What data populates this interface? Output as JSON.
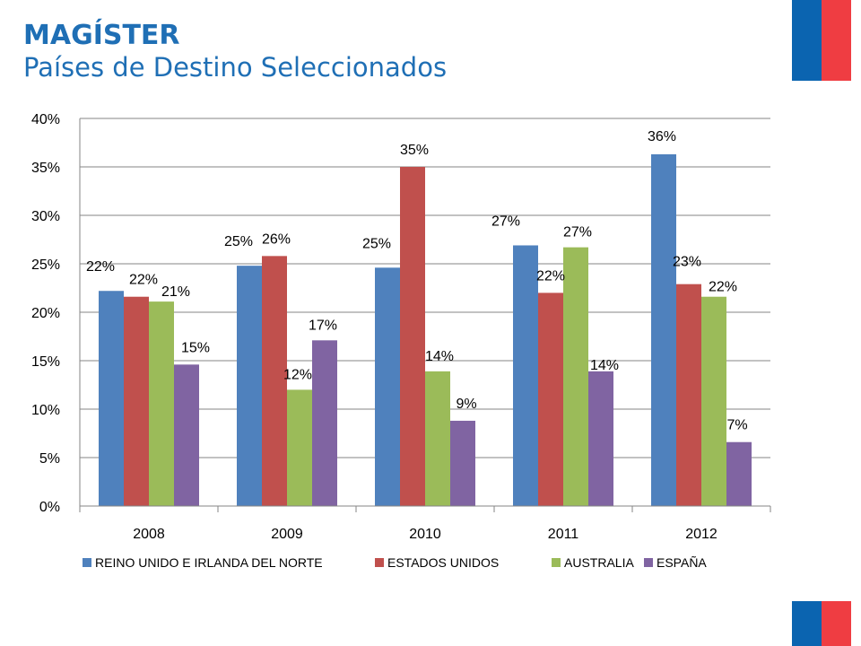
{
  "header": {
    "title": "MAGÍSTER",
    "subtitle": "Países de Destino Seleccionados"
  },
  "colors": {
    "flag_blue": "#0b64b0",
    "flag_red": "#ef3d42",
    "title": "#1f6fb5"
  },
  "chart_data": {
    "type": "bar",
    "categories": [
      "2008",
      "2009",
      "2010",
      "2011",
      "2012"
    ],
    "series": [
      {
        "name": "REINO UNIDO E IRLANDA DEL NORTE",
        "color": "#4f81bd",
        "values": [
          22.2,
          24.8,
          24.6,
          26.9,
          36.3
        ],
        "labels": [
          "22%",
          "25%",
          "25%",
          "27%",
          "36%"
        ]
      },
      {
        "name": "ESTADOS UNIDOS",
        "color": "#c0504d",
        "values": [
          21.6,
          25.8,
          35.0,
          22.0,
          22.9
        ],
        "labels": [
          "22%",
          "26%",
          "35%",
          "22%",
          "23%"
        ]
      },
      {
        "name": "AUSTRALIA",
        "color": "#9bbb59",
        "values": [
          21.1,
          12.0,
          13.9,
          26.7,
          21.6
        ],
        "labels": [
          "21%",
          "12%",
          "14%",
          "27%",
          "22%"
        ]
      },
      {
        "name": "ESPAÑA",
        "color": "#8064a2",
        "values": [
          14.6,
          17.1,
          8.8,
          13.9,
          6.6
        ],
        "labels": [
          "15%",
          "17%",
          "9%",
          "14%",
          "7%"
        ]
      }
    ],
    "ylim": [
      0,
      40
    ],
    "yticks": [
      "0%",
      "5%",
      "10%",
      "15%",
      "20%",
      "25%",
      "30%",
      "35%",
      "40%"
    ],
    "ytick_values": [
      0,
      5,
      10,
      15,
      20,
      25,
      30,
      35,
      40
    ],
    "grid": true,
    "legend": "bottom"
  }
}
